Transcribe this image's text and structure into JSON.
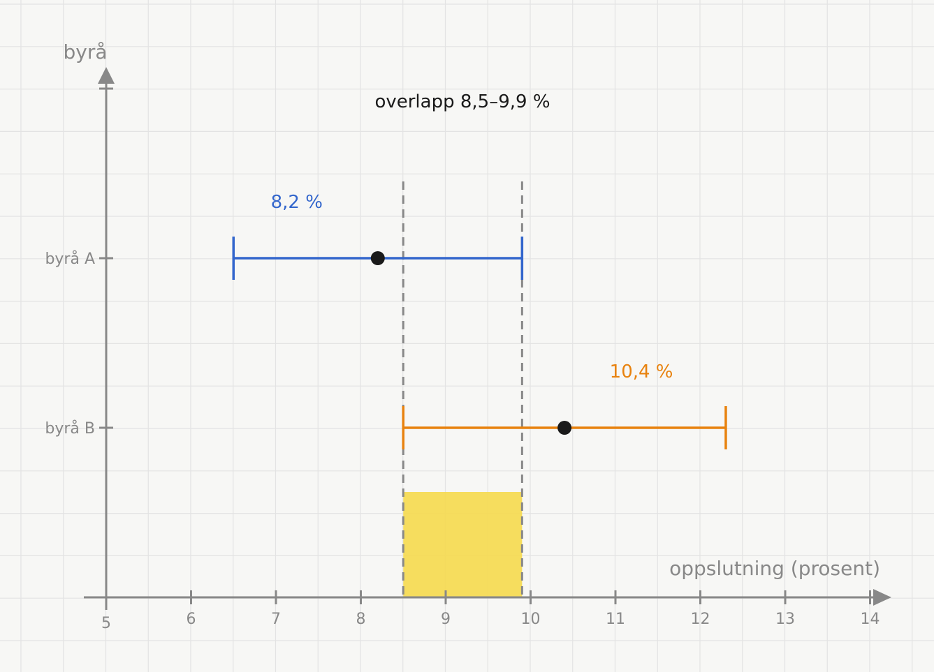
{
  "chart_data": {
    "type": "errorbar",
    "title": "overlapp 8,5–9,9 %",
    "xlabel": "oppslutning (prosent)",
    "ylabel": "byrå",
    "xlim": [
      5,
      14
    ],
    "x_ticks": [
      "5",
      "6",
      "7",
      "8",
      "9",
      "10",
      "11",
      "12",
      "13",
      "14"
    ],
    "grid": true,
    "series": [
      {
        "name": "byrå A",
        "estimate": 8.2,
        "low": 6.5,
        "high": 9.9,
        "label": "8,2 %",
        "color": "#3366cc"
      },
      {
        "name": "byrå B",
        "estimate": 10.4,
        "low": 8.5,
        "high": 12.3,
        "label": "10,4 %",
        "color": "#e8820e"
      }
    ],
    "overlap": {
      "low": 8.5,
      "high": 9.9,
      "color": "#f5d94e"
    },
    "colors": {
      "axis": "#888888",
      "grid": "#e3e3e3",
      "guide": "#888888",
      "point": "#1a1a1a",
      "text": "#1a1a1a"
    }
  }
}
